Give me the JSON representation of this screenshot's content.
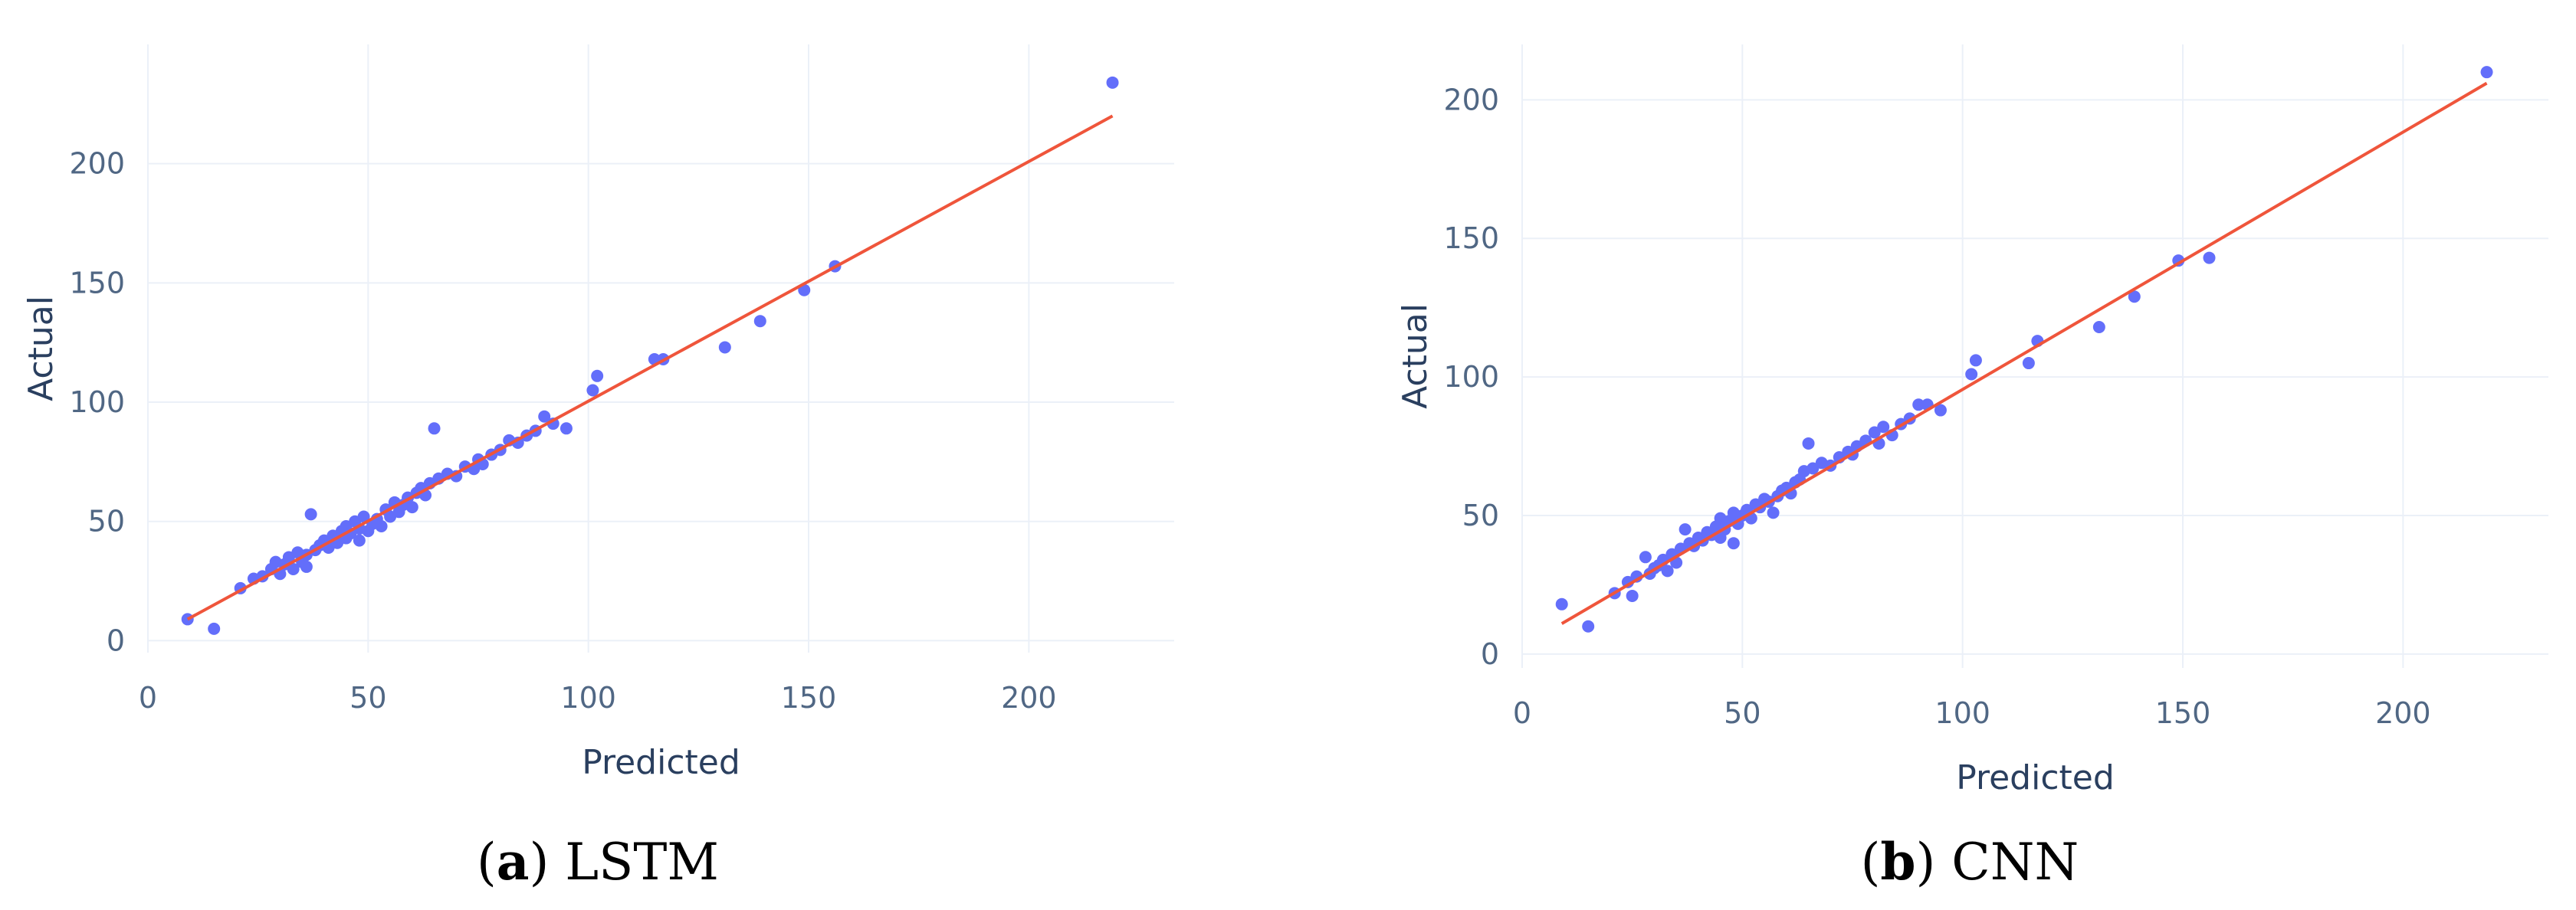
{
  "chart_data": [
    {
      "type": "scatter",
      "caption": {
        "open": "(",
        "letter": "a",
        "close": ")",
        "model": "LSTM"
      },
      "xlabel": "Predicted",
      "ylabel": "Actual",
      "xlim": [
        0,
        233
      ],
      "ylim": [
        -5,
        250
      ],
      "xticks": [
        0,
        50,
        100,
        150,
        200
      ],
      "yticks": [
        0,
        50,
        100,
        150,
        200
      ],
      "grid": true,
      "legend": "none",
      "colors": {
        "points": "#636efa",
        "line": "#ef553b",
        "grid": "#ebf0f8"
      },
      "fit_line": {
        "x": [
          9,
          219
        ],
        "y": [
          9,
          220
        ]
      },
      "points": [
        [
          9,
          9
        ],
        [
          15,
          5
        ],
        [
          21,
          22
        ],
        [
          24,
          26
        ],
        [
          26,
          27
        ],
        [
          28,
          30
        ],
        [
          29,
          33
        ],
        [
          30,
          28
        ],
        [
          31,
          32
        ],
        [
          32,
          35
        ],
        [
          33,
          30
        ],
        [
          34,
          37
        ],
        [
          35,
          33
        ],
        [
          36,
          31
        ],
        [
          36,
          36
        ],
        [
          37,
          53
        ],
        [
          38,
          38
        ],
        [
          39,
          40
        ],
        [
          40,
          42
        ],
        [
          41,
          39
        ],
        [
          42,
          44
        ],
        [
          43,
          41
        ],
        [
          44,
          46
        ],
        [
          45,
          43
        ],
        [
          45,
          48
        ],
        [
          46,
          45
        ],
        [
          47,
          50
        ],
        [
          48,
          42
        ],
        [
          48,
          47
        ],
        [
          49,
          52
        ],
        [
          50,
          46
        ],
        [
          51,
          49
        ],
        [
          52,
          51
        ],
        [
          53,
          48
        ],
        [
          54,
          55
        ],
        [
          55,
          52
        ],
        [
          56,
          58
        ],
        [
          57,
          54
        ],
        [
          58,
          57
        ],
        [
          59,
          60
        ],
        [
          60,
          56
        ],
        [
          61,
          62
        ],
        [
          62,
          64
        ],
        [
          63,
          61
        ],
        [
          64,
          66
        ],
        [
          65,
          89
        ],
        [
          66,
          68
        ],
        [
          68,
          70
        ],
        [
          70,
          69
        ],
        [
          72,
          73
        ],
        [
          74,
          72
        ],
        [
          75,
          76
        ],
        [
          76,
          74
        ],
        [
          78,
          78
        ],
        [
          80,
          80
        ],
        [
          82,
          84
        ],
        [
          84,
          83
        ],
        [
          86,
          86
        ],
        [
          88,
          88
        ],
        [
          90,
          94
        ],
        [
          92,
          91
        ],
        [
          95,
          89
        ],
        [
          101,
          105
        ],
        [
          102,
          111
        ],
        [
          115,
          118
        ],
        [
          117,
          118
        ],
        [
          131,
          123
        ],
        [
          139,
          134
        ],
        [
          149,
          147
        ],
        [
          156,
          157
        ],
        [
          219,
          234
        ]
      ]
    },
    {
      "type": "scatter",
      "caption": {
        "open": "(",
        "letter": "b",
        "close": ")",
        "model": "CNN"
      },
      "xlabel": "Predicted",
      "ylabel": "Actual",
      "xlim": [
        0,
        233
      ],
      "ylim": [
        -5,
        220
      ],
      "xticks": [
        0,
        50,
        100,
        150,
        200
      ],
      "yticks": [
        0,
        50,
        100,
        150,
        200
      ],
      "grid": true,
      "legend": "none",
      "colors": {
        "points": "#636efa",
        "line": "#ef553b",
        "grid": "#ebf0f8"
      },
      "fit_line": {
        "x": [
          9,
          219
        ],
        "y": [
          11,
          206
        ]
      },
      "points": [
        [
          9,
          18
        ],
        [
          15,
          10
        ],
        [
          21,
          22
        ],
        [
          24,
          26
        ],
        [
          25,
          21
        ],
        [
          26,
          28
        ],
        [
          28,
          35
        ],
        [
          29,
          29
        ],
        [
          30,
          31
        ],
        [
          31,
          32
        ],
        [
          32,
          34
        ],
        [
          33,
          30
        ],
        [
          34,
          36
        ],
        [
          35,
          33
        ],
        [
          36,
          38
        ],
        [
          37,
          45
        ],
        [
          38,
          40
        ],
        [
          39,
          39
        ],
        [
          40,
          42
        ],
        [
          41,
          41
        ],
        [
          42,
          44
        ],
        [
          43,
          43
        ],
        [
          44,
          46
        ],
        [
          45,
          42
        ],
        [
          45,
          49
        ],
        [
          46,
          45
        ],
        [
          47,
          48
        ],
        [
          48,
          40
        ],
        [
          48,
          51
        ],
        [
          49,
          47
        ],
        [
          50,
          50
        ],
        [
          51,
          52
        ],
        [
          52,
          49
        ],
        [
          53,
          54
        ],
        [
          54,
          53
        ],
        [
          55,
          56
        ],
        [
          56,
          55
        ],
        [
          57,
          51
        ],
        [
          58,
          57
        ],
        [
          59,
          59
        ],
        [
          60,
          60
        ],
        [
          61,
          58
        ],
        [
          62,
          62
        ],
        [
          63,
          63
        ],
        [
          64,
          66
        ],
        [
          65,
          76
        ],
        [
          66,
          67
        ],
        [
          68,
          69
        ],
        [
          70,
          68
        ],
        [
          72,
          71
        ],
        [
          74,
          73
        ],
        [
          75,
          72
        ],
        [
          76,
          75
        ],
        [
          78,
          77
        ],
        [
          80,
          80
        ],
        [
          81,
          76
        ],
        [
          82,
          82
        ],
        [
          84,
          79
        ],
        [
          86,
          83
        ],
        [
          88,
          85
        ],
        [
          90,
          90
        ],
        [
          92,
          90
        ],
        [
          95,
          88
        ],
        [
          102,
          101
        ],
        [
          103,
          106
        ],
        [
          115,
          105
        ],
        [
          117,
          113
        ],
        [
          131,
          118
        ],
        [
          139,
          129
        ],
        [
          149,
          142
        ],
        [
          156,
          143
        ],
        [
          219,
          210
        ]
      ]
    }
  ]
}
